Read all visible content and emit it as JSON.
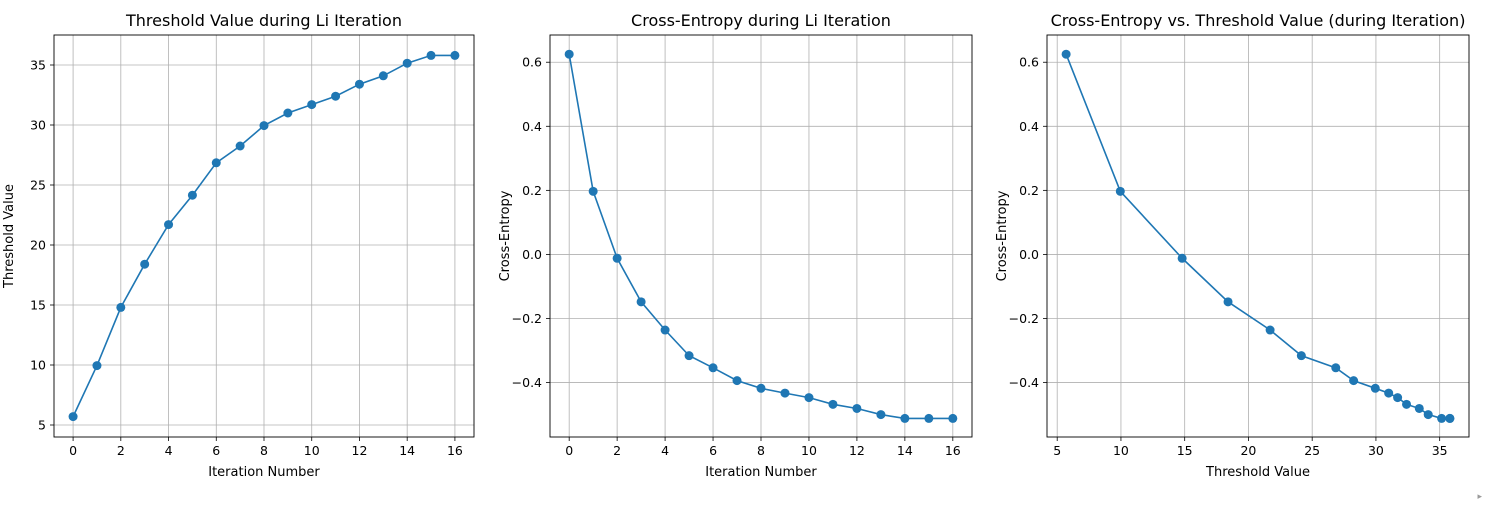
{
  "series_color": "#1f77b4",
  "chart_data": [
    {
      "type": "line",
      "title": "Threshold Value during Li Iteration",
      "xlabel": "Iteration Number",
      "ylabel": "Threshold Value",
      "xlim": [
        -0.8,
        16.8
      ],
      "ylim": [
        4.0,
        37.5
      ],
      "xticks": [
        0,
        2,
        4,
        6,
        8,
        10,
        12,
        14,
        16
      ],
      "yticks": [
        5,
        10,
        15,
        20,
        25,
        30,
        35
      ],
      "grid": true,
      "markers": "circle",
      "x": [
        0,
        1,
        2,
        3,
        4,
        5,
        6,
        7,
        8,
        9,
        10,
        11,
        12,
        13,
        14,
        15,
        16
      ],
      "y": [
        5.7,
        9.95,
        14.8,
        18.4,
        21.7,
        24.15,
        26.85,
        28.25,
        29.95,
        31.0,
        31.7,
        32.4,
        33.4,
        34.1,
        35.15,
        35.8,
        35.8
      ]
    },
    {
      "type": "line",
      "title": "Cross-Entropy during Li Iteration",
      "xlabel": "Iteration Number",
      "ylabel": "Cross-Entropy",
      "xlim": [
        -0.8,
        16.8
      ],
      "ylim": [
        -0.57,
        0.685
      ],
      "xticks": [
        0,
        2,
        4,
        6,
        8,
        10,
        12,
        14,
        16
      ],
      "yticks": [
        -0.4,
        -0.2,
        0.0,
        0.2,
        0.4,
        0.6
      ],
      "ytick_labels": [
        "−0.4",
        "−0.2",
        "0.0",
        "0.2",
        "0.4",
        "0.6"
      ],
      "grid": true,
      "markers": "circle",
      "x": [
        0,
        1,
        2,
        3,
        4,
        5,
        6,
        7,
        8,
        9,
        10,
        11,
        12,
        13,
        14,
        15,
        16
      ],
      "y": [
        0.625,
        0.197,
        -0.012,
        -0.148,
        -0.236,
        -0.316,
        -0.354,
        -0.394,
        -0.418,
        -0.433,
        -0.447,
        -0.468,
        -0.481,
        -0.5,
        -0.512,
        -0.512,
        -0.512
      ]
    },
    {
      "type": "line",
      "title": "Cross-Entropy vs. Threshold Value (during Iteration)",
      "xlabel": "Threshold Value",
      "ylabel": "Cross-Entropy",
      "xlim": [
        4.2,
        37.3
      ],
      "ylim": [
        -0.57,
        0.685
      ],
      "xticks": [
        5,
        10,
        15,
        20,
        25,
        30,
        35
      ],
      "yticks": [
        -0.4,
        -0.2,
        0.0,
        0.2,
        0.4,
        0.6
      ],
      "ytick_labels": [
        "−0.4",
        "−0.2",
        "0.0",
        "0.2",
        "0.4",
        "0.6"
      ],
      "grid": true,
      "markers": "circle",
      "x": [
        5.7,
        9.95,
        14.8,
        18.4,
        21.7,
        24.15,
        26.85,
        28.25,
        29.95,
        31.0,
        31.7,
        32.4,
        33.4,
        34.1,
        35.15,
        35.8,
        35.8
      ],
      "y": [
        0.625,
        0.197,
        -0.012,
        -0.148,
        -0.236,
        -0.316,
        -0.354,
        -0.394,
        -0.418,
        -0.433,
        -0.447,
        -0.468,
        -0.481,
        -0.5,
        -0.512,
        -0.512,
        -0.512
      ]
    }
  ]
}
